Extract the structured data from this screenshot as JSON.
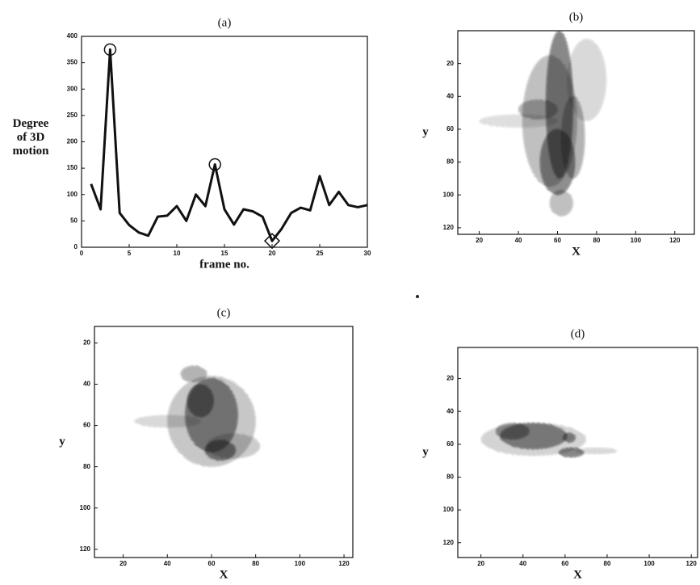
{
  "chart_data": [
    {
      "type": "line",
      "title": "(a)",
      "xlabel": "frame no.",
      "ylabel": [
        "Degree",
        "of 3D",
        "motion"
      ],
      "x": [
        1,
        2,
        3,
        4,
        5,
        6,
        7,
        8,
        9,
        10,
        11,
        12,
        13,
        14,
        15,
        16,
        17,
        18,
        19,
        20,
        21,
        22,
        23,
        24,
        25,
        26,
        27,
        28,
        29,
        30
      ],
      "values": [
        120,
        72,
        375,
        65,
        42,
        28,
        22,
        58,
        60,
        78,
        50,
        100,
        78,
        157,
        72,
        43,
        72,
        68,
        58,
        12,
        35,
        65,
        75,
        70,
        135,
        80,
        105,
        80,
        76,
        80
      ],
      "color": "#111111",
      "markers": [
        {
          "x": 3,
          "shape": "circle"
        },
        {
          "x": 14,
          "shape": "circle"
        },
        {
          "x": 20,
          "shape": "diamond"
        }
      ],
      "xlim": [
        0,
        30
      ],
      "ylim": [
        0,
        400
      ],
      "xticks": [
        0,
        5,
        10,
        15,
        20,
        25,
        30
      ],
      "yticks": [
        0,
        50,
        100,
        150,
        200,
        250,
        300,
        350,
        400
      ]
    },
    {
      "type": "image",
      "title": "(b)",
      "xlabel": "X",
      "ylabel": "y",
      "xlim": [
        9,
        130
      ],
      "ylim": [
        0,
        124
      ],
      "y_reversed": true,
      "xticks": [
        20,
        40,
        60,
        80,
        100,
        120
      ],
      "yticks": [
        20,
        40,
        60,
        80,
        100,
        120
      ]
    },
    {
      "type": "image",
      "title": "(c)",
      "xlabel": "X",
      "ylabel": "y",
      "xlim": [
        7,
        124
      ],
      "ylim": [
        12,
        124
      ],
      "y_reversed": true,
      "xticks": [
        20,
        40,
        60,
        80,
        100,
        120
      ],
      "yticks": [
        20,
        40,
        60,
        80,
        100,
        120
      ]
    },
    {
      "type": "image",
      "title": "(d)",
      "xlabel": "X",
      "ylabel": "y",
      "xlim": [
        9,
        123
      ],
      "ylim": [
        1,
        129
      ],
      "y_reversed": true,
      "xticks": [
        20,
        40,
        60,
        80,
        100,
        120
      ],
      "yticks": [
        20,
        40,
        60,
        80,
        100,
        120
      ]
    }
  ]
}
